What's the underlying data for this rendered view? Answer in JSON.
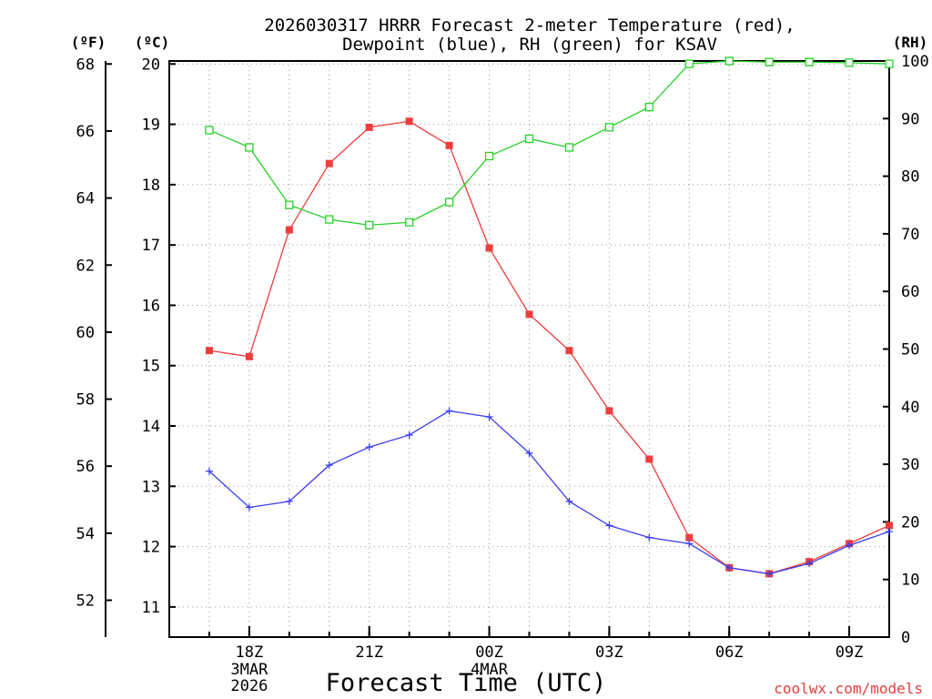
{
  "chart_data": {
    "type": "line",
    "title_line1": "2026030317 HRRR Forecast 2-meter Temperature (red),",
    "title_line2": "Dewpoint (blue), RH (green) for KSAV",
    "xlabel": "Forecast Time (UTC)",
    "credit": "coolwx.com/models",
    "left_outer_unit": "(ºF)",
    "left_inner_unit": "(ºC)",
    "right_unit": "(RH)",
    "celsius_range": [
      10.5,
      20.05
    ],
    "fahrenheit_ticks": [
      "52",
      "54",
      "56",
      "58",
      "60",
      "62",
      "64",
      "66",
      "68"
    ],
    "fahrenheit_tick_values": [
      52,
      54,
      56,
      58,
      60,
      62,
      64,
      66,
      68
    ],
    "celsius_ticks": [
      "11",
      "12",
      "13",
      "14",
      "15",
      "16",
      "17",
      "18",
      "19",
      "20"
    ],
    "celsius_tick_values": [
      11,
      12,
      13,
      14,
      15,
      16,
      17,
      18,
      19,
      20
    ],
    "rh_range": [
      0,
      100
    ],
    "rh_ticks": [
      "0",
      "10",
      "20",
      "30",
      "40",
      "50",
      "60",
      "70",
      "80",
      "90",
      "100"
    ],
    "rh_tick_values": [
      0,
      10,
      20,
      30,
      40,
      50,
      60,
      70,
      80,
      90,
      100
    ],
    "x_range_hours": [
      -1,
      17
    ],
    "x_ticks": [
      {
        "hour": 1,
        "label": "18Z",
        "sub1": "3MAR",
        "sub2": "2026"
      },
      {
        "hour": 4,
        "label": "21Z",
        "sub1": "",
        "sub2": ""
      },
      {
        "hour": 7,
        "label": "00Z",
        "sub1": "4MAR",
        "sub2": ""
      },
      {
        "hour": 10,
        "label": "03Z",
        "sub1": "",
        "sub2": ""
      },
      {
        "hour": 13,
        "label": "06Z",
        "sub1": "",
        "sub2": ""
      },
      {
        "hour": 16,
        "label": "09Z",
        "sub1": "",
        "sub2": ""
      }
    ],
    "series": [
      {
        "name": "Temperature",
        "color": "#f03c3c",
        "marker": "filled-square",
        "axis": "celsius",
        "x": [
          0,
          1,
          2,
          3,
          4,
          5,
          6,
          7,
          8,
          9,
          10,
          11,
          12,
          13,
          14,
          15,
          16,
          17
        ],
        "values": [
          15.25,
          15.15,
          17.25,
          18.35,
          18.95,
          19.05,
          18.65,
          16.95,
          15.85,
          15.25,
          14.25,
          13.45,
          12.15,
          11.65,
          11.55,
          11.75,
          12.05,
          12.35
        ]
      },
      {
        "name": "Dewpoint",
        "color": "#3c3cf0",
        "marker": "plus",
        "axis": "celsius",
        "x": [
          0,
          1,
          2,
          3,
          4,
          5,
          6,
          7,
          8,
          9,
          10,
          11,
          12,
          13,
          14,
          15,
          16,
          17
        ],
        "values": [
          13.25,
          12.65,
          12.75,
          13.35,
          13.65,
          13.85,
          14.25,
          14.15,
          13.55,
          12.75,
          12.35,
          12.15,
          12.05,
          11.65,
          11.55,
          11.72,
          12.02,
          12.25
        ]
      },
      {
        "name": "RH",
        "color": "#28d028",
        "marker": "open-square",
        "axis": "rh",
        "x": [
          0,
          1,
          2,
          3,
          4,
          5,
          6,
          7,
          8,
          9,
          10,
          11,
          12,
          13,
          14,
          15,
          16,
          17
        ],
        "values": [
          88,
          85,
          75,
          72.5,
          71.5,
          72,
          75.5,
          83.5,
          86.5,
          85,
          88.5,
          92,
          99.5,
          100,
          99.8,
          99.8,
          99.7,
          99.5
        ]
      }
    ]
  }
}
